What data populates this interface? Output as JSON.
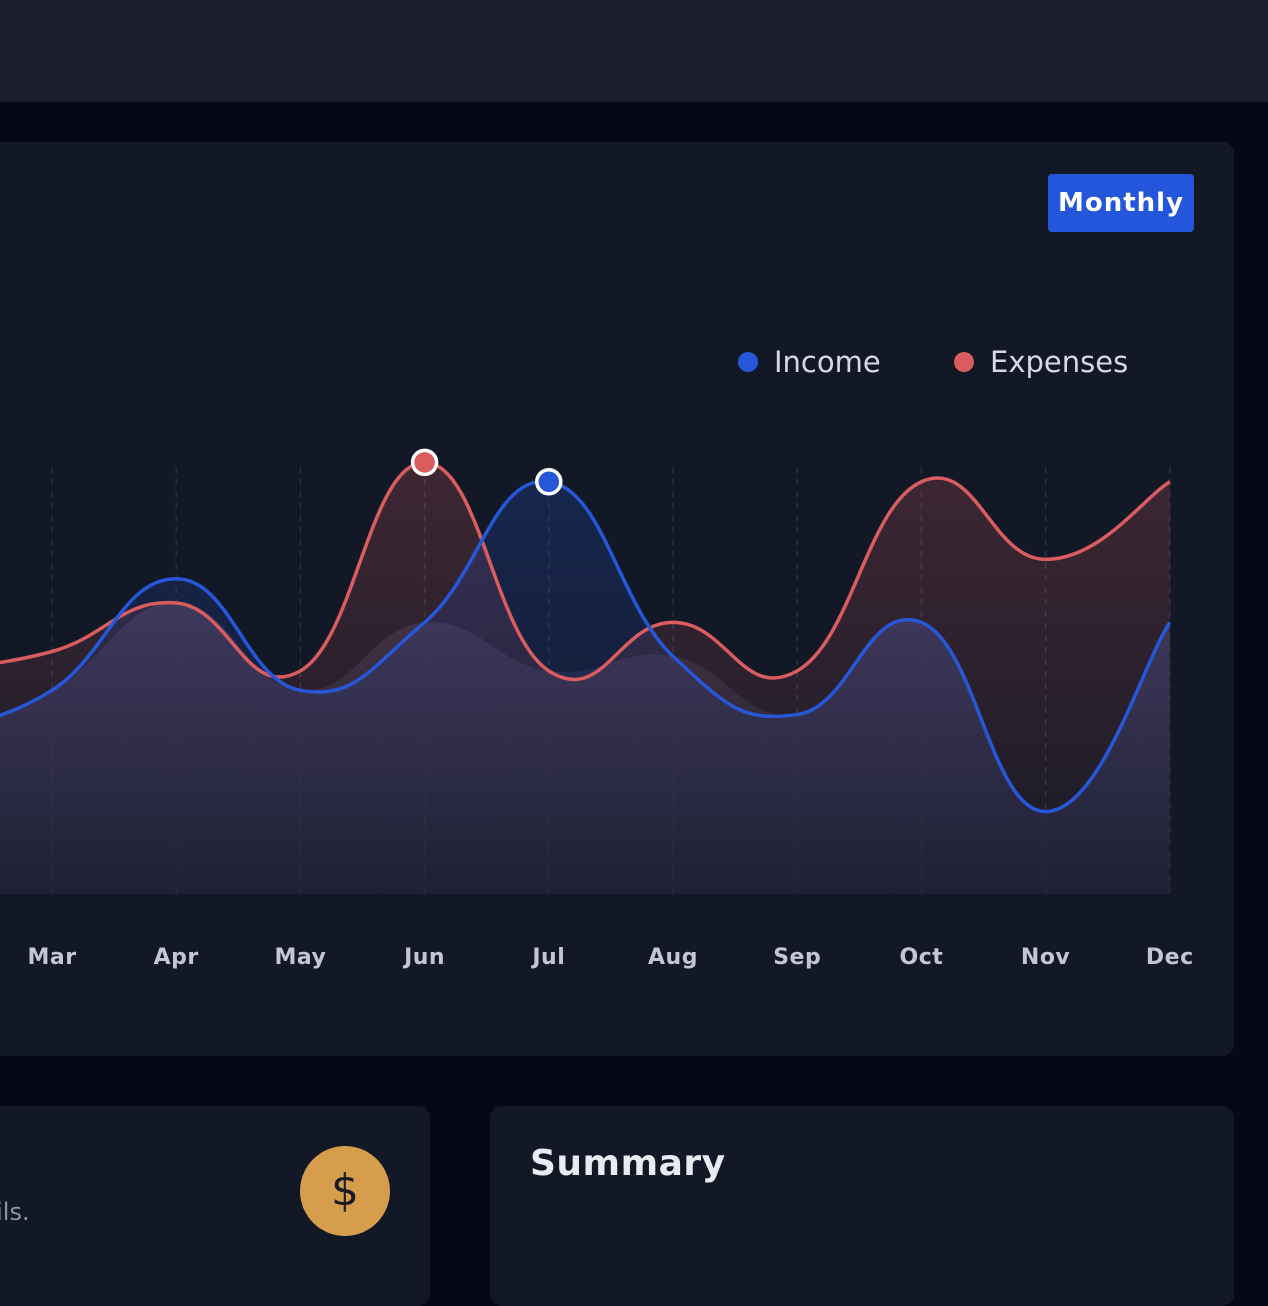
{
  "header": {},
  "chart_card": {
    "period_button": "Monthly"
  },
  "chart_data": {
    "type": "area",
    "categories": [
      "Mar",
      "Apr",
      "May",
      "Jun",
      "Jul",
      "Aug",
      "Sep",
      "Oct",
      "Nov",
      "Dec"
    ],
    "series": [
      {
        "name": "Income",
        "color": "#2757d9",
        "values": [
          42,
          65,
          42,
          56,
          85,
          49,
          37,
          56,
          17,
          56
        ]
      },
      {
        "name": "Expenses",
        "color": "#d95c5f",
        "values": [
          50,
          60,
          46,
          89,
          46,
          56,
          46,
          85,
          69,
          85
        ]
      }
    ],
    "highlighted_points": [
      {
        "series": "Expenses",
        "category": "Jun"
      },
      {
        "series": "Income",
        "category": "Jul"
      }
    ],
    "title": "",
    "xlabel": "",
    "ylabel": "",
    "ylim": [
      0,
      100
    ],
    "legend_position": "top-right",
    "grid": "vertical-dashed"
  },
  "balance_card": {
    "hint": "tails.",
    "icon_glyph": "$",
    "icon_color": "#d69d4c"
  },
  "summary_card": {
    "title": "Summary"
  }
}
